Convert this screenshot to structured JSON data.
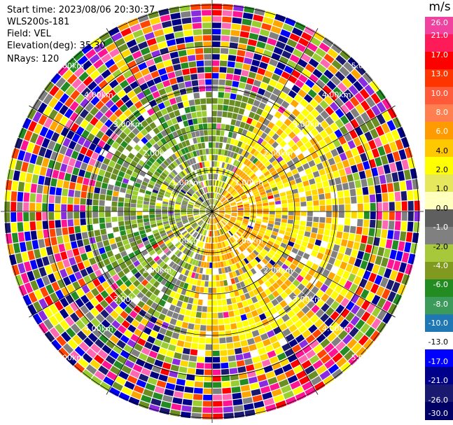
{
  "header": {
    "start_time": "Start time: 2023/08/06 20:30:37",
    "instrument": "WLS200s-181",
    "field": "Field: VEL",
    "elevation": "Elevation(deg): 35.30",
    "nrays": "NRays: 120"
  },
  "colorbar": {
    "unit": "m/s",
    "ticks": [
      "26.0",
      "21.0",
      "17.0",
      "13.0",
      "10.0",
      "8.0",
      "6.0",
      "4.0",
      "2.0",
      "1.0",
      "0.0",
      "-1.0",
      "-2.0",
      "-4.0",
      "-6.0",
      "-8.0",
      "-10.0",
      "-13.0",
      "-17.0",
      "-21.0",
      "-26.0",
      "-30.0"
    ],
    "colors": [
      "#f0429f",
      "#ff1a58",
      "#ff0000",
      "#ff3500",
      "#ff5a3a",
      "#ff7f50",
      "#ff9a00",
      "#ffc800",
      "#ffff00",
      "#e7e75d",
      "#ffffbe",
      "#5f5f5f",
      "#808080",
      "#a6c83a",
      "#7f9a1e",
      "#228b22",
      "#3c9a5a",
      "#1f77b4",
      "#ffffff",
      "#0000ff",
      "#00008b",
      "#191970",
      "#000066"
    ]
  },
  "range_rings": [
    {
      "label": "1.00km"
    },
    {
      "label": "2.00km"
    },
    {
      "label": "3.00km"
    },
    {
      "label": "4.00km"
    },
    {
      "label": "5.00km"
    }
  ],
  "palette": {
    "near_pos": [
      "#ffa500",
      "#ffa500",
      "#ff8c00",
      "#ffff00",
      "#ffd700"
    ],
    "mid_pos": [
      "#ffff00",
      "#ffff00",
      "#ffd700",
      "#ffa500",
      "#808080"
    ],
    "near_neg": [
      "#808080",
      "#9acd32",
      "#6b8e23",
      "#808080",
      "#ffff00"
    ],
    "mid_neg": [
      "#6b8e23",
      "#9acd32",
      "#228b22",
      "#808080",
      "#6b8e23"
    ],
    "noise": [
      "#ff1493",
      "#ff0000",
      "#ffff00",
      "#0000ff",
      "#00008b",
      "#228b22",
      "#9acd32",
      "#808080",
      "#ffa500",
      "#ff69b4",
      "#000080",
      "#ffd700",
      "#6b8e23",
      "#8a2be2",
      "#ff4500",
      "#191970"
    ]
  }
}
